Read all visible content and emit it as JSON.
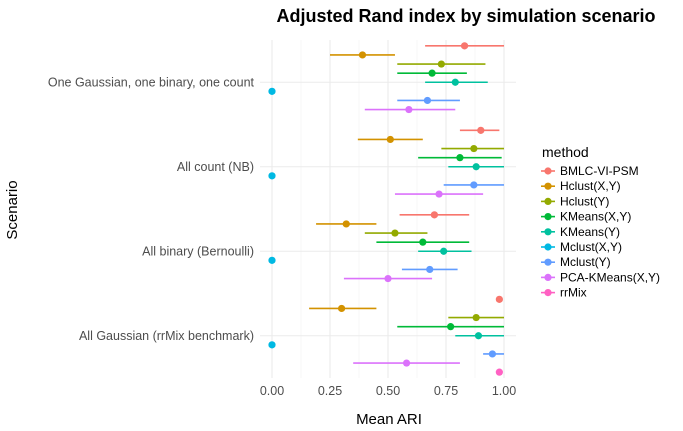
{
  "chart_data": {
    "type": "scatter",
    "title": "Adjusted Rand index by simulation scenario",
    "xlabel": "Mean ARI",
    "ylabel": "Scenario",
    "xlim": [
      -0.04,
      1.04
    ],
    "xticks": [
      "0.00",
      "0.25",
      "0.50",
      "0.75",
      "1.00"
    ],
    "categories": [
      "One Gaussian, one binary, one count",
      "All count (NB)",
      "All binary (Bernoulli)",
      "All Gaussian (rrMix benchmark)"
    ],
    "legend": {
      "title": "method",
      "position": "right"
    },
    "series": [
      {
        "name": "BMLC-VI-PSM",
        "color": "#F8766D",
        "points": [
          {
            "mean": 0.83,
            "lo": 0.66,
            "hi": 1.0
          },
          {
            "mean": 0.9,
            "lo": 0.81,
            "hi": 0.98
          },
          {
            "mean": 0.7,
            "lo": 0.55,
            "hi": 0.85
          },
          {
            "mean": 0.98,
            "lo": 0.98,
            "hi": 0.98
          }
        ]
      },
      {
        "name": "Hclust(X,Y)",
        "color": "#D39200",
        "points": [
          {
            "mean": 0.39,
            "lo": 0.25,
            "hi": 0.53
          },
          {
            "mean": 0.51,
            "lo": 0.37,
            "hi": 0.65
          },
          {
            "mean": 0.32,
            "lo": 0.19,
            "hi": 0.45
          },
          {
            "mean": 0.3,
            "lo": 0.16,
            "hi": 0.45
          }
        ]
      },
      {
        "name": "Hclust(Y)",
        "color": "#93AA00",
        "points": [
          {
            "mean": 0.73,
            "lo": 0.54,
            "hi": 0.92
          },
          {
            "mean": 0.87,
            "lo": 0.73,
            "hi": 1.0
          },
          {
            "mean": 0.53,
            "lo": 0.4,
            "hi": 0.67
          },
          {
            "mean": 0.88,
            "lo": 0.76,
            "hi": 1.0
          }
        ]
      },
      {
        "name": "KMeans(X,Y)",
        "color": "#00BA38",
        "points": [
          {
            "mean": 0.69,
            "lo": 0.54,
            "hi": 0.84
          },
          {
            "mean": 0.81,
            "lo": 0.63,
            "hi": 0.99
          },
          {
            "mean": 0.65,
            "lo": 0.45,
            "hi": 0.85
          },
          {
            "mean": 0.77,
            "lo": 0.54,
            "hi": 1.0
          }
        ]
      },
      {
        "name": "KMeans(Y)",
        "color": "#00C19F",
        "points": [
          {
            "mean": 0.79,
            "lo": 0.66,
            "hi": 0.93
          },
          {
            "mean": 0.88,
            "lo": 0.76,
            "hi": 1.0
          },
          {
            "mean": 0.74,
            "lo": 0.63,
            "hi": 0.86
          },
          {
            "mean": 0.89,
            "lo": 0.79,
            "hi": 1.0
          }
        ]
      },
      {
        "name": "Mclust(X,Y)",
        "color": "#00B9E3",
        "points": [
          {
            "mean": 0.0,
            "lo": 0.0,
            "hi": 0.0
          },
          {
            "mean": 0.0,
            "lo": 0.0,
            "hi": 0.0
          },
          {
            "mean": 0.0,
            "lo": 0.0,
            "hi": 0.0
          },
          {
            "mean": 0.0,
            "lo": 0.0,
            "hi": 0.0
          }
        ]
      },
      {
        "name": "Mclust(Y)",
        "color": "#619CFF",
        "points": [
          {
            "mean": 0.67,
            "lo": 0.54,
            "hi": 0.81
          },
          {
            "mean": 0.87,
            "lo": 0.74,
            "hi": 1.0
          },
          {
            "mean": 0.68,
            "lo": 0.56,
            "hi": 0.8
          },
          {
            "mean": 0.95,
            "lo": 0.91,
            "hi": 1.0
          }
        ]
      },
      {
        "name": "PCA-KMeans(X,Y)",
        "color": "#DB72FB",
        "points": [
          {
            "mean": 0.59,
            "lo": 0.4,
            "hi": 0.79
          },
          {
            "mean": 0.72,
            "lo": 0.53,
            "hi": 0.91
          },
          {
            "mean": 0.5,
            "lo": 0.31,
            "hi": 0.69
          },
          {
            "mean": 0.58,
            "lo": 0.35,
            "hi": 0.81
          }
        ]
      },
      {
        "name": "rrMix",
        "color": "#FF61C3",
        "points": [
          {
            "mean": null,
            "lo": null,
            "hi": null
          },
          {
            "mean": null,
            "lo": null,
            "hi": null
          },
          {
            "mean": null,
            "lo": null,
            "hi": null
          },
          {
            "mean": 0.98,
            "lo": 0.98,
            "hi": 0.98
          }
        ]
      }
    ]
  }
}
